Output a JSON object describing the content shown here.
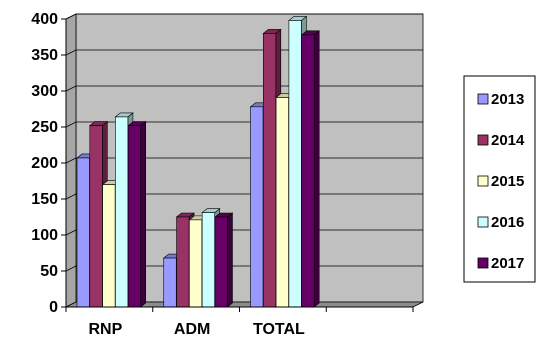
{
  "chart_data": {
    "type": "bar",
    "style": "3d-clustered-column",
    "categories": [
      "RNP",
      "ADM",
      "TOTAL",
      ""
    ],
    "series": [
      {
        "name": "2013",
        "values": [
          207,
          68,
          278,
          null
        ],
        "color": "#9999ff"
      },
      {
        "name": "2014",
        "values": [
          252,
          125,
          380,
          null
        ],
        "color": "#993366"
      },
      {
        "name": "2015",
        "values": [
          170,
          121,
          291,
          null
        ],
        "color": "#ffffcc"
      },
      {
        "name": "2016",
        "values": [
          264,
          131,
          398,
          null
        ],
        "color": "#ccffff"
      },
      {
        "name": "2017",
        "values": [
          252,
          125,
          378,
          null
        ],
        "color": "#660066"
      }
    ],
    "ylim": [
      0,
      400
    ],
    "yticks": [
      "0",
      "50",
      "100",
      "150",
      "200",
      "250",
      "300",
      "350",
      "400"
    ],
    "grid": true,
    "plot_background": "#c0c0c0",
    "legend_position": "right",
    "title": "",
    "xlabel": "",
    "ylabel": ""
  }
}
